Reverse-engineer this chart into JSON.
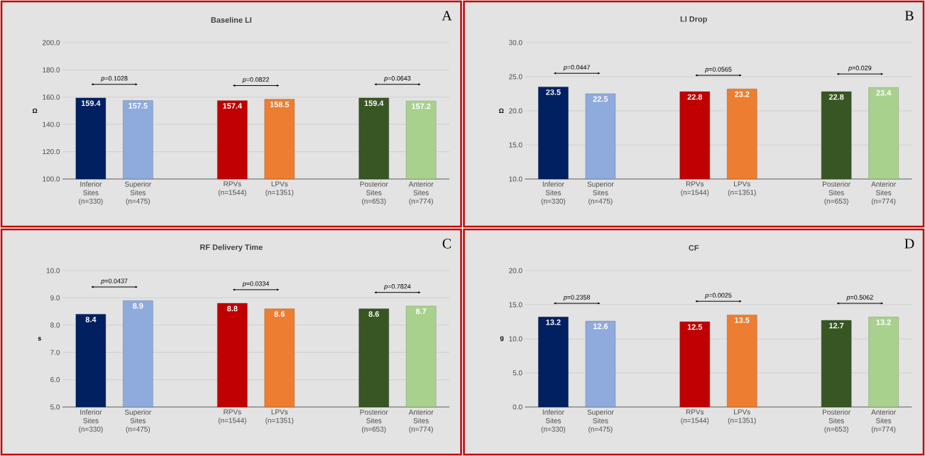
{
  "chart_data": [
    {
      "type": "bar",
      "title": "Baseline LI",
      "subtitle": "A",
      "ylabel": "Ω",
      "categories": [
        "Inferior Sites (n=330)",
        "Superior Sites (n=475)",
        null,
        "RPVs (n=1544)",
        "LPVs (n=1351)",
        null,
        "Posterior Sites (n=653)",
        "Anterior Sites (n=774)"
      ],
      "values": [
        159.4,
        157.5,
        null,
        157.4,
        158.5,
        null,
        159.4,
        157.2
      ],
      "colors": [
        "#002060",
        "#8faadc",
        null,
        "#c00000",
        "#ed7d31",
        null,
        "#375623",
        "#a9d18e"
      ],
      "data_labels": true,
      "ylim": [
        100,
        200
      ],
      "yticks": [
        {
          "value": 100,
          "label": "100.0"
        },
        {
          "value": 120,
          "label": "120.0"
        },
        {
          "value": 140,
          "label": "140.0"
        },
        {
          "value": 160,
          "label": "160.0"
        },
        {
          "value": 180,
          "label": "180.0"
        },
        {
          "value": 200,
          "label": "200.0"
        }
      ],
      "grid": "y",
      "annotations": [
        "*p*=0.1028",
        "*p*=0.0822",
        "*p*=0.0643"
      ]
    },
    {
      "type": "bar",
      "title": "LI Drop",
      "subtitle": "B",
      "ylabel": "Ω",
      "categories": [
        "Inferior Sites (n=330)",
        "Superior Sites (n=475)",
        null,
        "RPVs (n=1544)",
        "LPVs (n=1351)",
        null,
        "Posterior Sites (n=653)",
        "Anterior Sites (n=774)"
      ],
      "values": [
        23.5,
        22.5,
        null,
        22.8,
        23.2,
        null,
        22.8,
        23.4
      ],
      "colors": [
        "#002060",
        "#8faadc",
        null,
        "#c00000",
        "#ed7d31",
        null,
        "#375623",
        "#a9d18e"
      ],
      "data_labels": true,
      "ylim": [
        10,
        30
      ],
      "yticks": [
        {
          "value": 10,
          "label": "10.0"
        },
        {
          "value": 15,
          "label": "15.0"
        },
        {
          "value": 20,
          "label": "20.0"
        },
        {
          "value": 25,
          "label": "25.0"
        },
        {
          "value": 30,
          "label": "30.0"
        }
      ],
      "grid": "y",
      "annotations": [
        "*p*=0.0447",
        "*p*=0.0565",
        "*p*=0.029"
      ]
    },
    {
      "type": "bar",
      "title": "RF Delivery Time",
      "subtitle": "C",
      "ylabel": "s",
      "categories": [
        "Inferior Sites (n=330)",
        "Superior Sites (n=475)",
        null,
        "RPVs (n=1544)",
        "LPVs (n=1351)",
        null,
        "Posterior Sites (n=653)",
        "Anterior Sites (n=774)"
      ],
      "values": [
        8.4,
        8.9,
        null,
        8.8,
        8.6,
        null,
        8.6,
        8.7
      ],
      "colors": [
        "#002060",
        "#8faadc",
        null,
        "#c00000",
        "#ed7d31",
        null,
        "#375623",
        "#a9d18e"
      ],
      "data_labels": true,
      "ylim": [
        5,
        10
      ],
      "yticks": [
        {
          "value": 5,
          "label": "5.0"
        },
        {
          "value": 6,
          "label": "6.0"
        },
        {
          "value": 7,
          "label": "7.0"
        },
        {
          "value": 8,
          "label": "8.0"
        },
        {
          "value": 9,
          "label": "9.0"
        },
        {
          "value": 10,
          "label": "10.0"
        }
      ],
      "grid": "y",
      "annotations": [
        "*p*=0.0437",
        "*p*=0.0334",
        "*p*=0.7824"
      ]
    },
    {
      "type": "bar",
      "title": "CF",
      "subtitle": "D",
      "ylabel": "g",
      "categories": [
        "Inferior Sites (n=330)",
        "Superior Sites (n=475)",
        null,
        "RPVs (n=1544)",
        "LPVs (n=1351)",
        null,
        "Posterior Sites (n=653)",
        "Anterior Sites (n=774)"
      ],
      "values": [
        13.2,
        12.6,
        null,
        12.5,
        13.5,
        null,
        12.7,
        13.2
      ],
      "colors": [
        "#002060",
        "#8faadc",
        null,
        "#c00000",
        "#ed7d31",
        null,
        "#375623",
        "#a9d18e"
      ],
      "data_labels": true,
      "ylim": [
        0,
        20
      ],
      "yticks": [
        {
          "value": 0,
          "label": "0.0"
        },
        {
          "value": 5,
          "label": "5.0"
        },
        {
          "value": 10,
          "label": "10.0"
        },
        {
          "value": 15,
          "label": "15.0"
        },
        {
          "value": 20,
          "label": "20.0"
        }
      ],
      "grid": "y",
      "annotations": [
        "*p*=0.2358",
        "*p*=0.0025",
        "*p*=0.5062"
      ]
    }
  ]
}
